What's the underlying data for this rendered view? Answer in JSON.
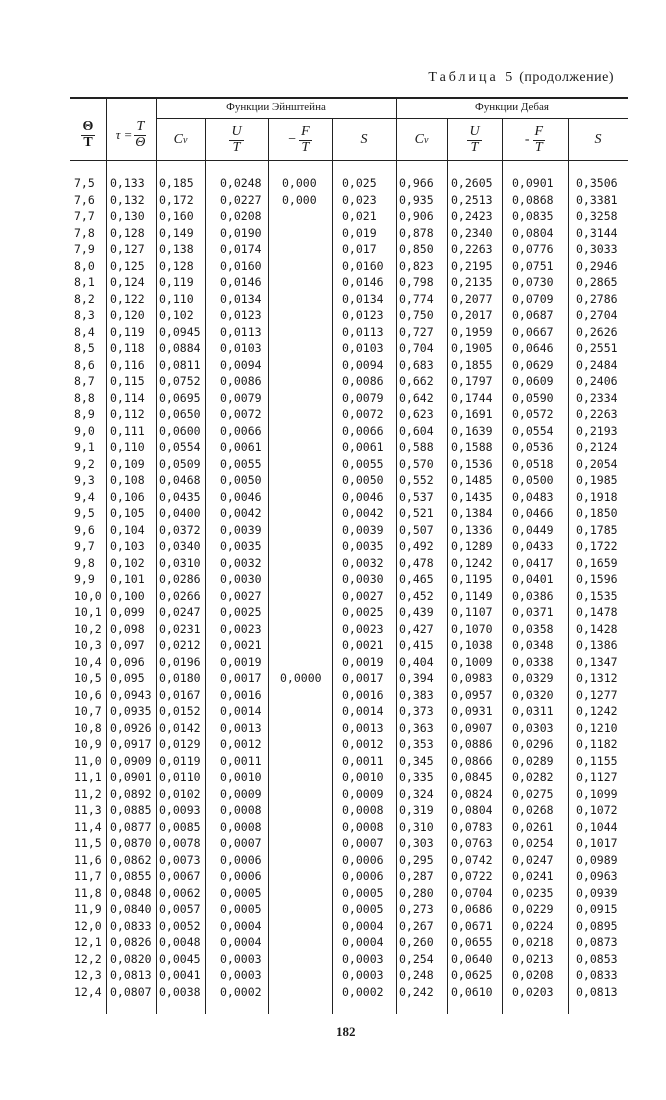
{
  "caption": {
    "title": "Таблица 5",
    "note": "(продолжение)"
  },
  "header": {
    "col_theta_over_T": {
      "num": "Θ",
      "den": "T"
    },
    "col_tau": {
      "lhs": "τ =",
      "num": "T",
      "den": "Θ"
    },
    "einstein_group": "Функции Эйнштейна",
    "debye_group": "Функции Дебая",
    "sub_columns": [
      {
        "label": "C",
        "sub": "v"
      },
      {
        "num": "U",
        "den": "T"
      },
      {
        "sign": "−",
        "num": "F",
        "den": "T"
      },
      {
        "label": "S"
      },
      {
        "label": "C",
        "sub": "v"
      },
      {
        "num": "U",
        "den": "T"
      },
      {
        "sign": "-",
        "num": "F",
        "den": "T"
      },
      {
        "label": "S"
      }
    ]
  },
  "rows": [
    [
      "7,5",
      "0,133",
      "0,185",
      "0,0248",
      "0,000",
      "0,025",
      "0,966",
      "0,2605",
      "0,0901",
      "0,3506"
    ],
    [
      "7,6",
      "0,132",
      "0,172",
      "0,0227",
      "0,000",
      "0,023",
      "0,935",
      "0,2513",
      "0,0868",
      "0,3381"
    ],
    [
      "7,7",
      "0,130",
      "0,160",
      "0,0208",
      "",
      "0,021",
      "0,906",
      "0,2423",
      "0,0835",
      "0,3258"
    ],
    [
      "7,8",
      "0,128",
      "0,149",
      "0,0190",
      "",
      "0,019",
      "0,878",
      "0,2340",
      "0,0804",
      "0,3144"
    ],
    [
      "7,9",
      "0,127",
      "0,138",
      "0,0174",
      "",
      "0,017",
      "0,850",
      "0,2263",
      "0,0776",
      "0,3033"
    ],
    [
      "8,0",
      "0,125",
      "0,128",
      "0,0160",
      "",
      "0,0160",
      "0,823",
      "0,2195",
      "0,0751",
      "0,2946"
    ],
    [
      "8,1",
      "0,124",
      "0,119",
      "0,0146",
      "",
      "0,0146",
      "0,798",
      "0,2135",
      "0,0730",
      "0,2865"
    ],
    [
      "8,2",
      "0,122",
      "0,110",
      "0,0134",
      "",
      "0,0134",
      "0,774",
      "0,2077",
      "0,0709",
      "0,2786"
    ],
    [
      "8,3",
      "0,120",
      "0,102",
      "0,0123",
      "",
      "0,0123",
      "0,750",
      "0,2017",
      "0,0687",
      "0,2704"
    ],
    [
      "8,4",
      "0,119",
      "0,0945",
      "0,0113",
      "",
      "0,0113",
      "0,727",
      "0,1959",
      "0,0667",
      "0,2626"
    ],
    [
      "8,5",
      "0,118",
      "0,0884",
      "0,0103",
      "",
      "0,0103",
      "0,704",
      "0,1905",
      "0,0646",
      "0,2551"
    ],
    [
      "8,6",
      "0,116",
      "0,0811",
      "0,0094",
      "",
      "0,0094",
      "0,683",
      "0,1855",
      "0,0629",
      "0,2484"
    ],
    [
      "8,7",
      "0,115",
      "0,0752",
      "0,0086",
      "",
      "0,0086",
      "0,662",
      "0,1797",
      "0,0609",
      "0,2406"
    ],
    [
      "8,8",
      "0,114",
      "0,0695",
      "0,0079",
      "",
      "0,0079",
      "0,642",
      "0,1744",
      "0,0590",
      "0,2334"
    ],
    [
      "8,9",
      "0,112",
      "0,0650",
      "0,0072",
      "",
      "0,0072",
      "0,623",
      "0,1691",
      "0,0572",
      "0,2263"
    ],
    [
      "9,0",
      "0,111",
      "0,0600",
      "0,0066",
      "",
      "0,0066",
      "0,604",
      "0,1639",
      "0,0554",
      "0,2193"
    ],
    [
      "9,1",
      "0,110",
      "0,0554",
      "0,0061",
      "",
      "0,0061",
      "0,588",
      "0,1588",
      "0,0536",
      "0,2124"
    ],
    [
      "9,2",
      "0,109",
      "0,0509",
      "0,0055",
      "",
      "0,0055",
      "0,570",
      "0,1536",
      "0,0518",
      "0,2054"
    ],
    [
      "9,3",
      "0,108",
      "0,0468",
      "0,0050",
      "",
      "0,0050",
      "0,552",
      "0,1485",
      "0,0500",
      "0,1985"
    ],
    [
      "9,4",
      "0,106",
      "0,0435",
      "0,0046",
      "",
      "0,0046",
      "0,537",
      "0,1435",
      "0,0483",
      "0,1918"
    ],
    [
      "9,5",
      "0,105",
      "0,0400",
      "0,0042",
      "",
      "0,0042",
      "0,521",
      "0,1384",
      "0,0466",
      "0,1850"
    ],
    [
      "9,6",
      "0,104",
      "0,0372",
      "0,0039",
      "",
      "0,0039",
      "0,507",
      "0,1336",
      "0,0449",
      "0,1785"
    ],
    [
      "9,7",
      "0,103",
      "0,0340",
      "0,0035",
      "",
      "0,0035",
      "0,492",
      "0,1289",
      "0,0433",
      "0,1722"
    ],
    [
      "9,8",
      "0,102",
      "0,0310",
      "0,0032",
      "",
      "0,0032",
      "0,478",
      "0,1242",
      "0,0417",
      "0,1659"
    ],
    [
      "9,9",
      "0,101",
      "0,0286",
      "0,0030",
      "",
      "0,0030",
      "0,465",
      "0,1195",
      "0,0401",
      "0,1596"
    ],
    [
      "10,0",
      "0,100",
      "0,0266",
      "0,0027",
      "",
      "0,0027",
      "0,452",
      "0,1149",
      "0,0386",
      "0,1535"
    ],
    [
      "10,1",
      "0,099",
      "0,0247",
      "0,0025",
      "",
      "0,0025",
      "0,439",
      "0,1107",
      "0,0371",
      "0,1478"
    ],
    [
      "10,2",
      "0,098",
      "0,0231",
      "0,0023",
      "",
      "0,0023",
      "0,427",
      "0,1070",
      "0,0358",
      "0,1428"
    ],
    [
      "10,3",
      "0,097",
      "0,0212",
      "0,0021",
      "",
      "0,0021",
      "0,415",
      "0,1038",
      "0,0348",
      "0,1386"
    ],
    [
      "10,4",
      "0,096",
      "0,0196",
      "0,0019",
      "",
      "0,0019",
      "0,404",
      "0,1009",
      "0,0338",
      "0,1347"
    ],
    [
      "10,5",
      "0,095",
      "0,0180",
      "0,0017",
      "0,0000",
      "0,0017",
      "0,394",
      "0,0983",
      "0,0329",
      "0,1312"
    ],
    [
      "10,6",
      "0,0943",
      "0,0167",
      "0,0016",
      "",
      "0,0016",
      "0,383",
      "0,0957",
      "0,0320",
      "0,1277"
    ],
    [
      "10,7",
      "0,0935",
      "0,0152",
      "0,0014",
      "",
      "0,0014",
      "0,373",
      "0,0931",
      "0,0311",
      "0,1242"
    ],
    [
      "10,8",
      "0,0926",
      "0,0142",
      "0,0013",
      "",
      "0,0013",
      "0,363",
      "0,0907",
      "0,0303",
      "0,1210"
    ],
    [
      "10,9",
      "0,0917",
      "0,0129",
      "0,0012",
      "",
      "0,0012",
      "0,353",
      "0,0886",
      "0,0296",
      "0,1182"
    ],
    [
      "11,0",
      "0,0909",
      "0,0119",
      "0,0011",
      "",
      "0,0011",
      "0,345",
      "0,0866",
      "0,0289",
      "0,1155"
    ],
    [
      "11,1",
      "0,0901",
      "0,0110",
      "0,0010",
      "",
      "0,0010",
      "0,335",
      "0,0845",
      "0,0282",
      "0,1127"
    ],
    [
      "11,2",
      "0,0892",
      "0,0102",
      "0,0009",
      "",
      "0,0009",
      "0,324",
      "0,0824",
      "0,0275",
      "0,1099"
    ],
    [
      "11,3",
      "0,0885",
      "0,0093",
      "0,0008",
      "",
      "0,0008",
      "0,319",
      "0,0804",
      "0,0268",
      "0,1072"
    ],
    [
      "11,4",
      "0,0877",
      "0,0085",
      "0,0008",
      "",
      "0,0008",
      "0,310",
      "0,0783",
      "0,0261",
      "0,1044"
    ],
    [
      "11,5",
      "0,0870",
      "0,0078",
      "0,0007",
      "",
      "0,0007",
      "0,303",
      "0,0763",
      "0,0254",
      "0,1017"
    ],
    [
      "11,6",
      "0,0862",
      "0,0073",
      "0,0006",
      "",
      "0,0006",
      "0,295",
      "0,0742",
      "0,0247",
      "0,0989"
    ],
    [
      "11,7",
      "0,0855",
      "0,0067",
      "0,0006",
      "",
      "0,0006",
      "0,287",
      "0,0722",
      "0,0241",
      "0,0963"
    ],
    [
      "11,8",
      "0,0848",
      "0,0062",
      "0,0005",
      "",
      "0,0005",
      "0,280",
      "0,0704",
      "0,0235",
      "0,0939"
    ],
    [
      "11,9",
      "0,0840",
      "0,0057",
      "0,0005",
      "",
      "0,0005",
      "0,273",
      "0,0686",
      "0,0229",
      "0,0915"
    ],
    [
      "12,0",
      "0,0833",
      "0,0052",
      "0,0004",
      "",
      "0,0004",
      "0,267",
      "0,0671",
      "0,0224",
      "0,0895"
    ],
    [
      "12,1",
      "0,0826",
      "0,0048",
      "0,0004",
      "",
      "0,0004",
      "0,260",
      "0,0655",
      "0,0218",
      "0,0873"
    ],
    [
      "12,2",
      "0,0820",
      "0,0045",
      "0,0003",
      "",
      "0,0003",
      "0,254",
      "0,0640",
      "0,0213",
      "0,0853"
    ],
    [
      "12,3",
      "0,0813",
      "0,0041",
      "0,0003",
      "",
      "0,0003",
      "0,248",
      "0,0625",
      "0,0208",
      "0,0833"
    ],
    [
      "12,4",
      "0,0807",
      "0,0038",
      "0,0002",
      "",
      "0,0002",
      "0,242",
      "0,0610",
      "0,0203",
      "0,0813"
    ]
  ],
  "page_number": "182"
}
